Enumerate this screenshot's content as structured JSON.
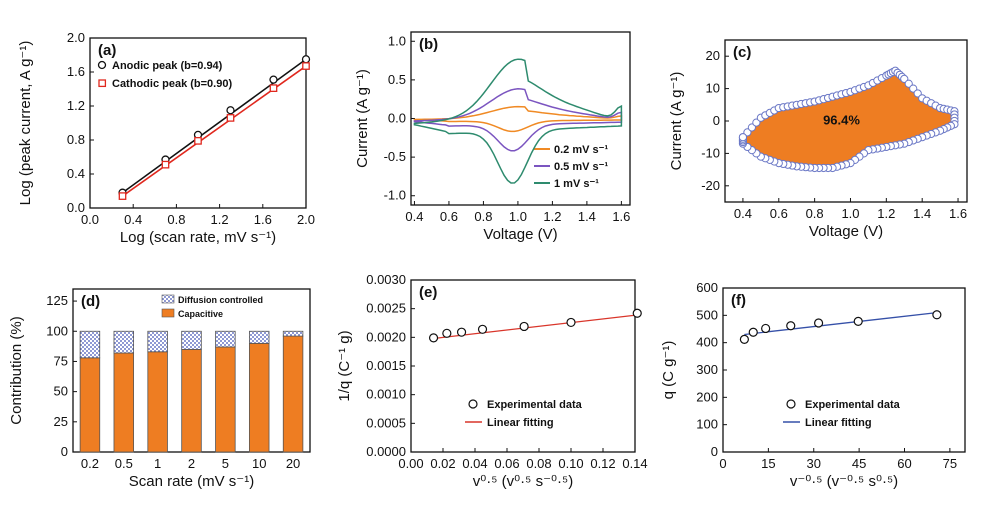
{
  "chart_data": [
    {
      "id": "a",
      "panel_label": "(a)",
      "type": "line",
      "xlabel": "Log (scan rate, mV s⁻¹)",
      "ylabel": "Log (peak current, A g⁻¹)",
      "xlim": [
        0.0,
        2.0
      ],
      "ylim": [
        0.0,
        2.0
      ],
      "xticks": [
        "0.0",
        "0.4",
        "0.8",
        "1.2",
        "1.6",
        "2.0"
      ],
      "yticks": [
        "0.0",
        "0.4",
        "0.8",
        "1.2",
        "1.6",
        "2.0"
      ],
      "legend_position": "top-left",
      "series": [
        {
          "name": "Anodic peak (b=0.94)",
          "color": "#111111",
          "marker": "circle",
          "x": [
            0.301,
            0.699,
            1.0,
            1.301,
            1.699,
            2.0
          ],
          "y": [
            0.18,
            0.57,
            0.86,
            1.15,
            1.51,
            1.75
          ]
        },
        {
          "name": "Cathodic peak (b=0.90)",
          "color": "#e0281e",
          "marker": "square",
          "x": [
            0.301,
            0.699,
            1.0,
            1.301,
            1.699,
            2.0
          ],
          "y": [
            0.14,
            0.51,
            0.79,
            1.06,
            1.41,
            1.67
          ]
        }
      ]
    },
    {
      "id": "b",
      "panel_label": "(b)",
      "type": "line",
      "xlabel": "Voltage (V)",
      "ylabel": "Current (A g⁻¹)",
      "xlim": [
        0.38,
        1.65
      ],
      "ylim": [
        -1.12,
        1.12
      ],
      "xticks": [
        "0.4",
        "0.6",
        "0.8",
        "1.0",
        "1.2",
        "1.4",
        "1.6"
      ],
      "yticks": [
        "-1.0",
        "-0.5",
        "0.0",
        "0.5",
        "1.0"
      ],
      "legend_position": "bottom-right",
      "series": [
        {
          "name": "0.2 mV s⁻¹",
          "color": "#f08a24",
          "amp": 0.16,
          "offset": -0.02
        },
        {
          "name": "0.5 mV s⁻¹",
          "color": "#7b55c0",
          "amp": 0.4,
          "offset": 0.0
        },
        {
          "name": "1 mV s⁻¹",
          "color": "#2e8b6e",
          "amp": 0.8,
          "offset": 0.0
        }
      ]
    },
    {
      "id": "c",
      "panel_label": "(c)",
      "type": "area",
      "xlabel": "Voltage (V)",
      "ylabel": "Current (A g⁻¹)",
      "xlim": [
        0.3,
        1.65
      ],
      "ylim": [
        -25,
        25
      ],
      "xticks": [
        "0.4",
        "0.6",
        "0.8",
        "1.0",
        "1.2",
        "1.4",
        "1.6"
      ],
      "yticks": [
        "-20",
        "-10",
        "0",
        "10",
        "20"
      ],
      "annotation": "96.4%",
      "fill_color": "#ee7d22",
      "marker_color": "#6b78c6",
      "upper": {
        "x": [
          0.4,
          0.5,
          0.6,
          0.7,
          0.8,
          0.9,
          1.0,
          1.1,
          1.2,
          1.25,
          1.3,
          1.4,
          1.5,
          1.58
        ],
        "y": [
          -5,
          1,
          4,
          5,
          6,
          7.5,
          9,
          11,
          14,
          15.5,
          13,
          7,
          4,
          3
        ]
      },
      "lower": {
        "x": [
          0.4,
          0.5,
          0.6,
          0.7,
          0.8,
          0.9,
          1.0,
          1.1,
          1.2,
          1.3,
          1.4,
          1.5,
          1.58
        ],
        "y": [
          -7,
          -11,
          -13,
          -14,
          -14.5,
          -14.5,
          -13,
          -9,
          -8,
          -7,
          -5,
          -3,
          -1
        ]
      }
    },
    {
      "id": "d",
      "panel_label": "(d)",
      "type": "bar",
      "xlabel": "Scan rate (mV s⁻¹)",
      "ylabel": "Contribution (%)",
      "ylim": [
        0,
        135
      ],
      "yticks": [
        "0",
        "25",
        "50",
        "75",
        "100",
        "125"
      ],
      "categories": [
        "0.2",
        "0.5",
        "1",
        "2",
        "5",
        "10",
        "20"
      ],
      "legend_position": "top-right",
      "series": [
        {
          "name": "Capacitive",
          "color": "#ee7d22",
          "values": [
            78,
            82,
            83,
            85,
            87,
            90,
            96
          ]
        },
        {
          "name": "Diffusion controlled",
          "color": "#6b78c6",
          "values": [
            22,
            18,
            17,
            15,
            13,
            10,
            4
          ]
        }
      ]
    },
    {
      "id": "e",
      "panel_label": "(e)",
      "type": "scatter",
      "xlabel": "v⁰·⁵ (v⁰·⁵ s⁻⁰·⁵)",
      "ylabel": "1/q (C⁻¹ g)",
      "xlim": [
        0.0,
        0.14
      ],
      "ylim": [
        0.0,
        0.003
      ],
      "xticks": [
        "0.00",
        "0.02",
        "0.04",
        "0.06",
        "0.08",
        "0.10",
        "0.12",
        "0.14"
      ],
      "yticks": [
        "0.0000",
        "0.0005",
        "0.0010",
        "0.0015",
        "0.0020",
        "0.0025",
        "0.0030"
      ],
      "legend_position": "bottom-center",
      "series": [
        {
          "name": "Experimental data",
          "color": "#111111",
          "marker": "circle",
          "x": [
            0.0141,
            0.0224,
            0.0316,
            0.0447,
            0.0707,
            0.1,
            0.1414
          ],
          "y": [
            0.00199,
            0.00207,
            0.00209,
            0.00214,
            0.00219,
            0.00226,
            0.00242
          ]
        },
        {
          "name": "Linear fitting",
          "color": "#d9352a",
          "line_x": [
            0.0141,
            0.1414
          ],
          "line_y": [
            0.00198,
            0.00239
          ]
        }
      ]
    },
    {
      "id": "f",
      "panel_label": "(f)",
      "type": "scatter",
      "xlabel": "v⁻⁰·⁵ (v⁻⁰·⁵ s⁰·⁵)",
      "ylabel": "q (C g⁻¹)",
      "xlim": [
        0,
        80
      ],
      "ylim": [
        0,
        600
      ],
      "xticks": [
        "0",
        "15",
        "30",
        "45",
        "60",
        "75"
      ],
      "yticks": [
        "0",
        "100",
        "200",
        "300",
        "400",
        "500",
        "600"
      ],
      "legend_position": "bottom-center",
      "series": [
        {
          "name": "Experimental data",
          "color": "#111111",
          "marker": "circle",
          "x": [
            7.07,
            10,
            14.1,
            22.4,
            31.6,
            44.7,
            70.7
          ],
          "y": [
            412,
            438,
            452,
            462,
            472,
            478,
            502
          ]
        },
        {
          "name": "Linear fitting",
          "color": "#3550a8",
          "line_x": [
            7.07,
            70.7
          ],
          "line_y": [
            430,
            510
          ]
        }
      ]
    }
  ]
}
